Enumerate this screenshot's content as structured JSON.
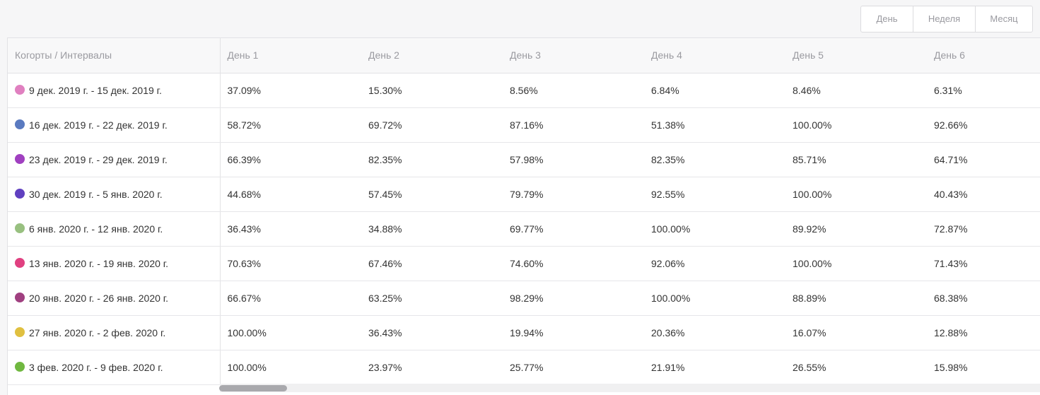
{
  "period_switch": {
    "options": [
      "День",
      "Неделя",
      "Месяц"
    ]
  },
  "table": {
    "header": {
      "label": "Когорты / Интервалы",
      "days": [
        "День 1",
        "День 2",
        "День 3",
        "День 4",
        "День 5",
        "День 6"
      ]
    },
    "rows": [
      {
        "cohort": "9 дек. 2019 г. - 15 дек. 2019 г.",
        "color": "#e080c0",
        "values": [
          "37.09%",
          "15.30%",
          "8.56%",
          "6.84%",
          "8.46%",
          "6.31%"
        ]
      },
      {
        "cohort": "16 дек. 2019 г. - 22 дек. 2019 г.",
        "color": "#5a7ac0",
        "values": [
          "58.72%",
          "69.72%",
          "87.16%",
          "51.38%",
          "100.00%",
          "92.66%"
        ]
      },
      {
        "cohort": "23 дек. 2019 г. - 29 дек. 2019 г.",
        "color": "#a040c0",
        "values": [
          "66.39%",
          "82.35%",
          "57.98%",
          "82.35%",
          "85.71%",
          "64.71%"
        ]
      },
      {
        "cohort": "30 дек. 2019 г. - 5 янв. 2020 г.",
        "color": "#6040c0",
        "values": [
          "44.68%",
          "57.45%",
          "79.79%",
          "92.55%",
          "100.00%",
          "40.43%"
        ]
      },
      {
        "cohort": "6 янв. 2020 г. - 12 янв. 2020 г.",
        "color": "#98c080",
        "values": [
          "36.43%",
          "34.88%",
          "69.77%",
          "100.00%",
          "89.92%",
          "72.87%"
        ]
      },
      {
        "cohort": "13 янв. 2020 г. - 19 янв. 2020 г.",
        "color": "#e04080",
        "values": [
          "70.63%",
          "67.46%",
          "74.60%",
          "92.06%",
          "100.00%",
          "71.43%"
        ]
      },
      {
        "cohort": "20 янв. 2020 г. - 26 янв. 2020 г.",
        "color": "#a04080",
        "values": [
          "66.67%",
          "63.25%",
          "98.29%",
          "100.00%",
          "88.89%",
          "68.38%"
        ]
      },
      {
        "cohort": "27 янв. 2020 г. - 2 фев. 2020 г.",
        "color": "#e0c040",
        "values": [
          "100.00%",
          "36.43%",
          "19.94%",
          "20.36%",
          "16.07%",
          "12.88%"
        ]
      },
      {
        "cohort": "3 фев. 2020 г. - 9 фев. 2020 г.",
        "color": "#70b840",
        "values": [
          "100.00%",
          "23.97%",
          "25.77%",
          "21.91%",
          "26.55%",
          "15.98%"
        ]
      }
    ]
  }
}
